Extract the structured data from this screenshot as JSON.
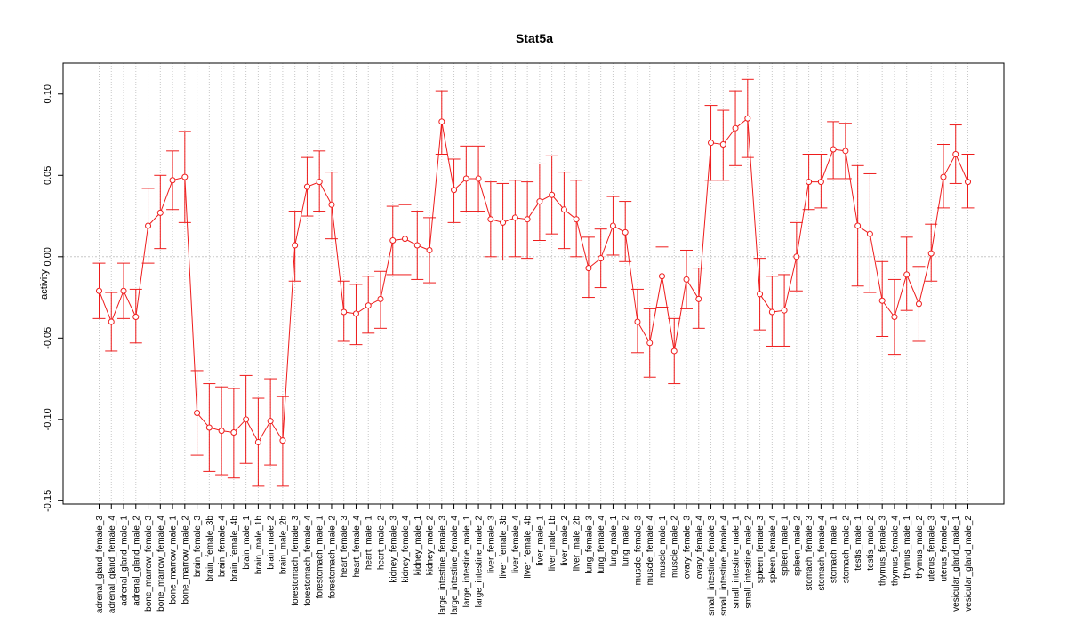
{
  "chart_data": {
    "type": "line",
    "title": "Stat5a",
    "xlabel": "",
    "ylabel": "activity",
    "ylim": [
      -0.152,
      0.119
    ],
    "y_ticks": [
      "-0.15",
      "-0.10",
      "-0.05",
      "0.00",
      "0.05",
      "0.10"
    ],
    "y_tick_values": [
      -0.15,
      -0.1,
      -0.05,
      0.0,
      0.05,
      0.1
    ],
    "grid": true,
    "zero_line": true,
    "colors": {
      "series": "#ee1c1c",
      "grid": "#c8c8c8",
      "axis": "#000000"
    },
    "categories": [
      "adrenal_gland_female_3",
      "adrenal_gland_female_4",
      "adrenal_gland_male_1",
      "adrenal_gland_male_2",
      "bone_marrow_female_3",
      "bone_marrow_female_4",
      "bone_marrow_male_1",
      "bone_marrow_male_2",
      "brain_female_3",
      "brain_female_3b",
      "brain_female_4",
      "brain_female_4b",
      "brain_male_1",
      "brain_male_1b",
      "brain_male_2",
      "brain_male_2b",
      "forestomach_female_3",
      "forestomach_female_4",
      "forestomach_male_1",
      "forestomach_male_2",
      "heart_female_3",
      "heart_female_4",
      "heart_male_1",
      "heart_male_2",
      "kidney_female_3",
      "kidney_female_4",
      "kidney_male_1",
      "kidney_male_2",
      "large_intestine_female_3",
      "large_intestine_female_4",
      "large_intestine_male_1",
      "large_intestine_male_2",
      "liver_female_3",
      "liver_female_3b",
      "liver_female_4",
      "liver_female_4b",
      "liver_male_1",
      "liver_male_1b",
      "liver_male_2",
      "liver_male_2b",
      "lung_female_3",
      "lung_female_4",
      "lung_male_1",
      "lung_male_2",
      "muscle_female_3",
      "muscle_female_4",
      "muscle_male_1",
      "muscle_male_2",
      "ovary_female_3",
      "ovary_female_4",
      "small_intestine_female_3",
      "small_intestine_female_4",
      "small_intestine_male_1",
      "small_intestine_male_2",
      "spleen_female_3",
      "spleen_female_4",
      "spleen_male_1",
      "spleen_male_2",
      "stomach_female_3",
      "stomach_female_4",
      "stomach_male_1",
      "stomach_male_2",
      "testis_male_1",
      "testis_male_2",
      "thymus_female_3",
      "thymus_female_4",
      "thymus_male_1",
      "thymus_male_2",
      "uterus_female_3",
      "uterus_female_4",
      "vesicular_gland_male_1",
      "vesicular_gland_male_2"
    ],
    "series": [
      {
        "name": "Stat5a",
        "values": [
          -0.021,
          -0.04,
          -0.021,
          -0.037,
          0.019,
          0.027,
          0.047,
          0.049,
          -0.096,
          -0.105,
          -0.107,
          -0.108,
          -0.1,
          -0.114,
          -0.101,
          -0.113,
          0.007,
          0.043,
          0.046,
          0.032,
          -0.034,
          -0.035,
          -0.03,
          -0.026,
          0.01,
          0.011,
          0.007,
          0.004,
          0.083,
          0.041,
          0.048,
          0.048,
          0.023,
          0.021,
          0.024,
          0.023,
          0.034,
          0.038,
          0.029,
          0.023,
          -0.007,
          -0.001,
          0.019,
          0.015,
          -0.04,
          -0.053,
          -0.012,
          -0.058,
          -0.014,
          -0.026,
          0.07,
          0.069,
          0.079,
          0.085,
          -0.023,
          -0.034,
          -0.033,
          0.0,
          0.046,
          0.046,
          0.066,
          0.065,
          0.019,
          0.014,
          -0.027,
          -0.037,
          -0.011,
          -0.029,
          0.002,
          0.049,
          0.063,
          0.046
        ],
        "lower": [
          -0.038,
          -0.058,
          -0.038,
          -0.053,
          -0.004,
          0.005,
          0.029,
          0.021,
          -0.122,
          -0.132,
          -0.134,
          -0.136,
          -0.127,
          -0.141,
          -0.128,
          -0.141,
          -0.015,
          0.025,
          0.028,
          0.011,
          -0.052,
          -0.054,
          -0.047,
          -0.044,
          -0.011,
          -0.011,
          -0.014,
          -0.016,
          0.063,
          0.021,
          0.028,
          0.028,
          0.0,
          -0.002,
          0.0,
          -0.001,
          0.01,
          0.014,
          0.005,
          0.0,
          -0.025,
          -0.019,
          0.001,
          -0.003,
          -0.059,
          -0.074,
          -0.031,
          -0.078,
          -0.032,
          -0.044,
          0.047,
          0.047,
          0.056,
          0.061,
          -0.045,
          -0.055,
          -0.055,
          -0.021,
          0.029,
          0.03,
          0.048,
          0.048,
          -0.018,
          -0.022,
          -0.049,
          -0.06,
          -0.033,
          -0.052,
          -0.015,
          0.03,
          0.045,
          0.03
        ],
        "upper": [
          -0.004,
          -0.022,
          -0.004,
          -0.02,
          0.042,
          0.05,
          0.065,
          0.077,
          -0.07,
          -0.078,
          -0.08,
          -0.081,
          -0.073,
          -0.087,
          -0.075,
          -0.086,
          0.028,
          0.061,
          0.065,
          0.052,
          -0.015,
          -0.017,
          -0.012,
          -0.009,
          0.031,
          0.032,
          0.028,
          0.024,
          0.102,
          0.06,
          0.068,
          0.068,
          0.046,
          0.045,
          0.047,
          0.046,
          0.057,
          0.062,
          0.052,
          0.047,
          0.012,
          0.017,
          0.037,
          0.034,
          -0.02,
          -0.032,
          0.006,
          -0.038,
          0.004,
          -0.007,
          0.093,
          0.09,
          0.102,
          0.109,
          -0.001,
          -0.012,
          -0.011,
          0.021,
          0.063,
          0.063,
          0.083,
          0.082,
          0.056,
          0.051,
          -0.003,
          -0.014,
          0.012,
          -0.006,
          0.02,
          0.069,
          0.081,
          0.063
        ]
      }
    ]
  }
}
